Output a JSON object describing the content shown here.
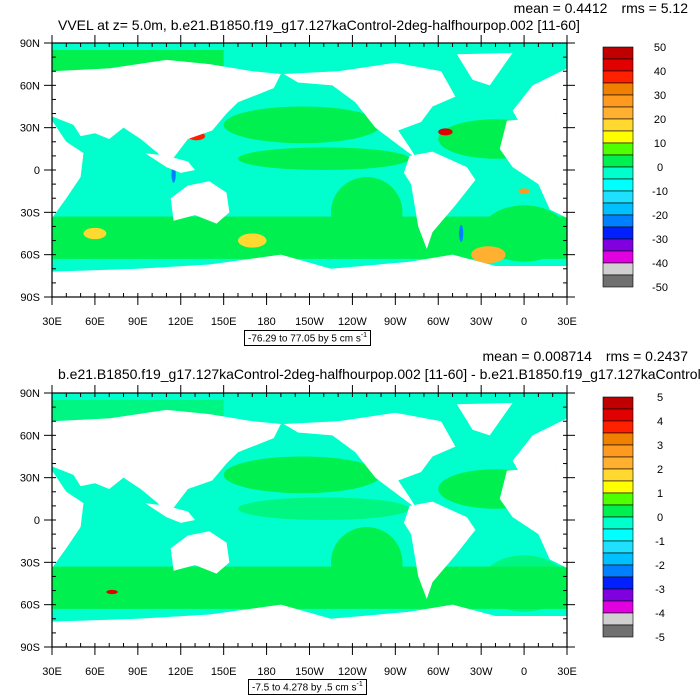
{
  "panels": [
    {
      "title": "VVEL at z=   5.0m, b.e21.B1850.f19_g17.127kaControl-2deg-halfhourpop.002 [11-60]",
      "mean": "mean = 0.4412",
      "rms": "rms = 5.12",
      "info": "-76.29 to 77.05 by 5 cm s",
      "info_sup": "-1",
      "colorbar_labels": [
        "50",
        "40",
        "30",
        "20",
        "10",
        "0",
        "-10",
        "-20",
        "-30",
        "-40",
        "-50"
      ]
    },
    {
      "title": "b.e21.B1850.f19_g17.127kaControl-2deg-halfhourpop.002 [11-60] - b.e21.B1850.f19_g17.127kaControl-",
      "mean": "mean = 0.008714",
      "rms": "rms = 0.2437",
      "info": "-7.5 to 4.278 by .5 cm s",
      "info_sup": "-1",
      "colorbar_labels": [
        "5",
        "4",
        "3",
        "2",
        "1",
        "0",
        "-1",
        "-2",
        "-3",
        "-4",
        "-5"
      ]
    }
  ],
  "lat_labels": [
    "90N",
    "60N",
    "30N",
    "0",
    "30S",
    "60S",
    "90S"
  ],
  "lon_labels": [
    "30E",
    "60E",
    "90E",
    "120E",
    "150E",
    "180",
    "150W",
    "120W",
    "90W",
    "60W",
    "30W",
    "0",
    "30E"
  ],
  "colors": {
    "palette": [
      "#c00000",
      "#e00000",
      "#ff2000",
      "#f08000",
      "#ff9a20",
      "#ffb030",
      "#ffd830",
      "#ffff00",
      "#50ff00",
      "#00f050",
      "#00ffcc",
      "#00ffff",
      "#20e0ff",
      "#00c0ff",
      "#0080ff",
      "#0020ff",
      "#8000e0",
      "#e000e0",
      "#d0d0d0",
      "#707070"
    ],
    "ocean_neg": "#00ffcc",
    "ocean_pos": "#00f050",
    "land": "#ffffff"
  }
}
